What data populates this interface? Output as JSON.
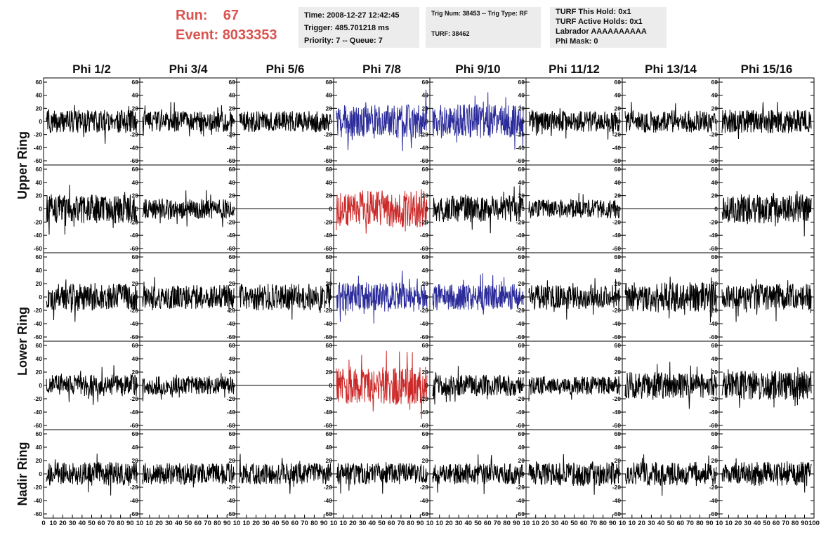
{
  "header": {
    "run_label": "Run:",
    "run_value": "67",
    "event_label": "Event:",
    "event_value": "8033353",
    "box1": {
      "time": "Time: 2008-12-27 12:42:45",
      "trigger": "Trigger: 485.701218 ms",
      "priority": "Priority: 7 -- Queue: 7"
    },
    "box2": {
      "trig": "Trig Num: 38453 -- Trig Type: RF",
      "turf": "TURF: 38462"
    },
    "box3": {
      "hold": "TURF This Hold: 0x1",
      "active": "TURF Active Holds: 0x1",
      "labrador": "Labrador AAAAAAAAAA",
      "phimask": "Phi Mask: 0"
    }
  },
  "colors": {
    "normal": "#000000",
    "blue": "#2b2b9a",
    "red": "#cc2a2a",
    "panel_bg": "#ececec",
    "run_text": "#d9534f"
  },
  "chart_data": {
    "type": "line",
    "columns": [
      "Phi 1/2",
      "Phi 3/4",
      "Phi 5/6",
      "Phi 7/8",
      "Phi 9/10",
      "Phi 11/12",
      "Phi 13/14",
      "Phi 15/16"
    ],
    "ring_labels": [
      "Upper Ring",
      "Lower Ring",
      "Nadir Ring"
    ],
    "rows": 5,
    "ylim": [
      -60,
      60
    ],
    "yticks": [
      "60",
      "40",
      "20",
      "0",
      "-20",
      "-40",
      "-60"
    ],
    "xlim": [
      0,
      100
    ],
    "xticks": [
      "0",
      "10",
      "20",
      "30",
      "40",
      "50",
      "60",
      "70",
      "80",
      "90",
      "100"
    ],
    "x_tick_labels": [
      "0",
      "10",
      "20",
      "30",
      "40",
      "50",
      "60",
      "70",
      "80",
      "90",
      "10",
      "10",
      "20",
      "30",
      "40",
      "50",
      "60",
      "70",
      "80",
      "90",
      "10",
      "10",
      "20",
      "30",
      "40",
      "50",
      "60",
      "70",
      "80",
      "90",
      "10",
      "10",
      "20",
      "30",
      "40",
      "50",
      "60",
      "70",
      "80",
      "90",
      "10",
      "10",
      "20",
      "30",
      "40",
      "50",
      "60",
      "70",
      "80",
      "90",
      "10",
      "10",
      "20",
      "30",
      "40",
      "50",
      "60",
      "70",
      "80",
      "90",
      "10",
      "10",
      "20",
      "30",
      "40",
      "50",
      "60",
      "70",
      "80",
      "90",
      "10",
      "10",
      "20",
      "30",
      "40",
      "50",
      "60",
      "70",
      "80",
      "90",
      "100"
    ],
    "highlighted": [
      {
        "row": 0,
        "col": 3,
        "color": "blue"
      },
      {
        "row": 0,
        "col": 4,
        "color": "blue"
      },
      {
        "row": 1,
        "col": 3,
        "color": "red"
      },
      {
        "row": 2,
        "col": 3,
        "color": "blue"
      },
      {
        "row": 2,
        "col": 4,
        "color": "blue"
      },
      {
        "row": 3,
        "col": 3,
        "color": "red"
      }
    ],
    "flat_panels": [
      {
        "row": 1,
        "col": 2
      },
      {
        "row": 1,
        "col": 6
      },
      {
        "row": 3,
        "col": 2
      }
    ],
    "waveform_amplitude": [
      [
        18,
        16,
        16,
        26,
        26,
        16,
        17,
        18
      ],
      [
        22,
        15,
        0,
        28,
        20,
        14,
        0,
        22
      ],
      [
        20,
        18,
        20,
        22,
        20,
        18,
        22,
        20
      ],
      [
        16,
        14,
        0,
        28,
        16,
        14,
        20,
        22
      ],
      [
        18,
        16,
        16,
        16,
        16,
        18,
        18,
        18
      ]
    ]
  }
}
